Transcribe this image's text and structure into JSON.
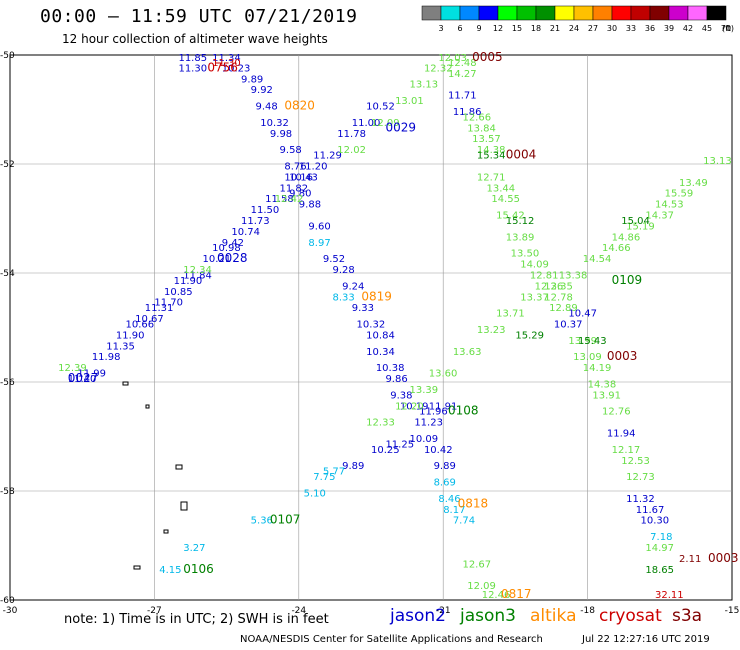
{
  "header": {
    "title": "00:00 – 11:59 UTC 07/21/2019",
    "subtitle": "12 hour collection of altimeter wave heights"
  },
  "colorbar": {
    "labels": [
      "3",
      "6",
      "9",
      "12",
      "15",
      "18",
      "21",
      "24",
      "27",
      "30",
      "33",
      "36",
      "39",
      "42",
      "45",
      "70",
      "(ft)"
    ],
    "colors": [
      "#7f7f7f",
      "#00e0e0",
      "#0088ff",
      "#0000ff",
      "#00ff00",
      "#00c000",
      "#009000",
      "#ffff00",
      "#ffc000",
      "#ff8000",
      "#ff0000",
      "#c00000",
      "#800000",
      "#cc00cc",
      "#ff66ff",
      "#000000"
    ]
  },
  "axes": {
    "x_ticks": [
      "-30",
      "-27",
      "-24",
      "-21",
      "-18",
      "-15"
    ],
    "y_ticks": [
      "-50",
      "-52",
      "-54",
      "-56",
      "-58",
      "-60"
    ],
    "lon_range": [
      -30,
      -15
    ],
    "lat_range": [
      -60,
      -50
    ]
  },
  "satellite_colors": {
    "jason2": "#0000cc",
    "jason3": "#008000",
    "altika": "#ff8c00",
    "cryosat": "#cc0000",
    "s3a": "#800000",
    "swh_blue": "#0000cc",
    "swh_cyan": "#00b8e8",
    "swh_lgreen": "#66dd44"
  },
  "tracks": [
    {
      "color": "#0000cc",
      "points": [
        {
          "lon": -28.8,
          "lat": -56.0,
          "v": "11.40"
        },
        {
          "lon": -28.6,
          "lat": -55.9,
          "v": "11.99"
        },
        {
          "lon": -28.3,
          "lat": -55.6,
          "v": "11.98"
        },
        {
          "lon": -28.0,
          "lat": -55.4,
          "v": "11.35"
        },
        {
          "lon": -27.8,
          "lat": -55.2,
          "v": "11.90"
        },
        {
          "lon": -27.6,
          "lat": -55.0,
          "v": "10.66"
        },
        {
          "lon": -27.4,
          "lat": -54.9,
          "v": "10.67"
        },
        {
          "lon": -27.2,
          "lat": -54.7,
          "v": "11.31"
        },
        {
          "lon": -27.0,
          "lat": -54.6,
          "v": "11.70"
        },
        {
          "lon": -26.8,
          "lat": -54.4,
          "v": "10.85"
        },
        {
          "lon": -26.6,
          "lat": -54.2,
          "v": "11.90"
        },
        {
          "lon": -26.4,
          "lat": -54.1,
          "v": "11.84"
        },
        {
          "lon": -26.0,
          "lat": -53.8,
          "v": "10.21"
        },
        {
          "lon": -25.8,
          "lat": -53.6,
          "v": "10.98"
        },
        {
          "lon": -25.6,
          "lat": -53.5,
          "v": "9.42"
        },
        {
          "lon": -25.4,
          "lat": -53.3,
          "v": "10.74"
        },
        {
          "lon": -25.2,
          "lat": -53.1,
          "v": "11.73"
        },
        {
          "lon": -25.0,
          "lat": -52.9,
          "v": "11.50"
        },
        {
          "lon": -24.7,
          "lat": -52.7,
          "v": "11.58"
        },
        {
          "lon": -24.4,
          "lat": -52.5,
          "v": "11.82"
        },
        {
          "lon": -24.2,
          "lat": -52.3,
          "v": "10.43"
        },
        {
          "lon": -24.0,
          "lat": -52.1,
          "v": "11.20"
        },
        {
          "lon": -23.7,
          "lat": -51.9,
          "v": "11.29"
        },
        {
          "lon": -23.2,
          "lat": -51.5,
          "v": "11.78"
        },
        {
          "lon": -22.9,
          "lat": -51.3,
          "v": "11.00"
        },
        {
          "lon": -22.6,
          "lat": -51.0,
          "v": "10.52"
        }
      ]
    },
    {
      "color": "#0000cc",
      "points": [
        {
          "lon": -25.8,
          "lat": -50.1,
          "v": "11.34"
        },
        {
          "lon": -25.6,
          "lat": -50.3,
          "v": "10.23"
        },
        {
          "lon": -25.2,
          "lat": -50.5,
          "v": "9.89"
        },
        {
          "lon": -25.0,
          "lat": -50.7,
          "v": "9.92"
        },
        {
          "lon": -24.9,
          "lat": -51.0,
          "v": "9.48"
        },
        {
          "lon": -24.8,
          "lat": -51.3,
          "v": "10.32"
        },
        {
          "lon": -24.6,
          "lat": -51.5,
          "v": "9.98"
        },
        {
          "lon": -24.4,
          "lat": -51.8,
          "v": "9.58"
        },
        {
          "lon": -24.3,
          "lat": -52.1,
          "v": "8.76"
        },
        {
          "lon": -24.3,
          "lat": -52.3,
          "v": "10.16"
        },
        {
          "lon": -24.2,
          "lat": -52.6,
          "v": "9.80"
        },
        {
          "lon": -24.0,
          "lat": -52.8,
          "v": "9.88"
        },
        {
          "lon": -23.8,
          "lat": -53.2,
          "v": "9.60"
        },
        {
          "lon": -23.5,
          "lat": -53.8,
          "v": "9.52"
        },
        {
          "lon": -23.3,
          "lat": -54.0,
          "v": "9.28"
        },
        {
          "lon": -23.1,
          "lat": -54.3,
          "v": "9.24"
        },
        {
          "lon": -22.9,
          "lat": -54.7,
          "v": "9.33"
        },
        {
          "lon": -22.8,
          "lat": -55.0,
          "v": "10.32"
        },
        {
          "lon": -22.6,
          "lat": -55.2,
          "v": "10.84"
        },
        {
          "lon": -22.6,
          "lat": -55.5,
          "v": "10.34"
        },
        {
          "lon": -22.4,
          "lat": -55.8,
          "v": "10.38"
        },
        {
          "lon": -22.2,
          "lat": -56.0,
          "v": "9.86"
        },
        {
          "lon": -22.1,
          "lat": -56.3,
          "v": "9.38"
        },
        {
          "lon": -21.9,
          "lat": -56.5,
          "v": "10.19"
        },
        {
          "lon": -21.6,
          "lat": -56.8,
          "v": "11.23"
        },
        {
          "lon": -21.7,
          "lat": -57.1,
          "v": "10.09"
        },
        {
          "lon": -21.4,
          "lat": -57.3,
          "v": "10.42"
        },
        {
          "lon": -21.2,
          "lat": -57.6,
          "v": "9.89"
        }
      ]
    },
    {
      "color": "#0000cc",
      "points": [
        {
          "lon": -22.5,
          "lat": -57.3,
          "v": "10.25"
        },
        {
          "lon": -22.2,
          "lat": -57.2,
          "v": "11.25"
        },
        {
          "lon": -21.5,
          "lat": -56.6,
          "v": "11.96"
        },
        {
          "lon": -21.3,
          "lat": -56.5,
          "v": "11.91"
        },
        {
          "lon": -20.9,
          "lat": -50.8,
          "v": "11.71"
        },
        {
          "lon": -20.8,
          "lat": -51.1,
          "v": "11.86"
        },
        {
          "lon": -18.7,
          "lat": -55.0,
          "v": "10.37"
        },
        {
          "lon": -18.4,
          "lat": -54.8,
          "v": "10.47"
        },
        {
          "lon": -17.6,
          "lat": -57.0,
          "v": "11.94"
        },
        {
          "lon": -17.2,
          "lat": -58.2,
          "v": "11.32"
        },
        {
          "lon": -17.0,
          "lat": -58.4,
          "v": "11.67"
        },
        {
          "lon": -16.9,
          "lat": -58.6,
          "v": "10.30"
        },
        {
          "lon": -23.1,
          "lat": -57.6,
          "v": "9.89"
        }
      ]
    },
    {
      "color": "#00b8e8",
      "points": [
        {
          "lon": -23.8,
          "lat": -53.5,
          "v": "8.97"
        },
        {
          "lon": -23.3,
          "lat": -54.5,
          "v": "8.33"
        },
        {
          "lon": -21.2,
          "lat": -57.9,
          "v": "8.69"
        },
        {
          "lon": -21.1,
          "lat": -58.2,
          "v": "8.46"
        },
        {
          "lon": -21.0,
          "lat": -58.4,
          "v": "8.17"
        },
        {
          "lon": -23.5,
          "lat": -57.7,
          "v": "5.77"
        },
        {
          "lon": -23.7,
          "lat": -57.8,
          "v": "7.75"
        },
        {
          "lon": -23.9,
          "lat": -58.1,
          "v": "5.10"
        },
        {
          "lon": -25.0,
          "lat": -58.6,
          "v": "5.36"
        },
        {
          "lon": -26.4,
          "lat": -59.1,
          "v": "3.27"
        },
        {
          "lon": -26.9,
          "lat": -59.5,
          "v": "4.15"
        },
        {
          "lon": -20.8,
          "lat": -58.6,
          "v": "7.74"
        },
        {
          "lon": -16.7,
          "lat": -58.9,
          "v": "7.18"
        }
      ]
    },
    {
      "color": "#66dd44",
      "points": [
        {
          "lon": -29.0,
          "lat": -55.8,
          "v": "12.39"
        },
        {
          "lon": -26.4,
          "lat": -54.0,
          "v": "12.34"
        },
        {
          "lon": -24.5,
          "lat": -52.7,
          "v": "12.42"
        },
        {
          "lon": -23.2,
          "lat": -51.8,
          "v": "12.02"
        },
        {
          "lon": -22.5,
          "lat": -51.3,
          "v": "12.09"
        },
        {
          "lon": -22.0,
          "lat": -50.9,
          "v": "13.01"
        },
        {
          "lon": -21.7,
          "lat": -50.6,
          "v": "13.13"
        },
        {
          "lon": -21.4,
          "lat": -50.3,
          "v": "12.32"
        },
        {
          "lon": -21.1,
          "lat": -50.0,
          "v": "12.03"
        },
        {
          "lon": -20.9,
          "lat": -50.2,
          "v": "12.48"
        },
        {
          "lon": -20.9,
          "lat": -50.4,
          "v": "14.27"
        },
        {
          "lon": -20.6,
          "lat": -51.2,
          "v": "12.66"
        },
        {
          "lon": -20.5,
          "lat": -51.4,
          "v": "13.84"
        },
        {
          "lon": -20.4,
          "lat": -51.6,
          "v": "13.57"
        },
        {
          "lon": -20.3,
          "lat": -51.8,
          "v": "14.38"
        },
        {
          "lon": -20.3,
          "lat": -52.3,
          "v": "12.71"
        },
        {
          "lon": -20.1,
          "lat": -52.5,
          "v": "13.44"
        },
        {
          "lon": -20.0,
          "lat": -52.7,
          "v": "14.55"
        },
        {
          "lon": -19.9,
          "lat": -53.0,
          "v": "15.42"
        },
        {
          "lon": -19.7,
          "lat": -53.4,
          "v": "13.89"
        },
        {
          "lon": -19.6,
          "lat": -53.7,
          "v": "13.50"
        },
        {
          "lon": -19.4,
          "lat": -53.9,
          "v": "14.09"
        },
        {
          "lon": -19.2,
          "lat": -54.1,
          "v": "12.81"
        },
        {
          "lon": -19.1,
          "lat": -54.3,
          "v": "12.26"
        },
        {
          "lon": -18.9,
          "lat": -54.5,
          "v": "12.78"
        },
        {
          "lon": -18.8,
          "lat": -54.7,
          "v": "12.89"
        },
        {
          "lon": -18.4,
          "lat": -55.3,
          "v": "13.99"
        },
        {
          "lon": -18.3,
          "lat": -55.6,
          "v": "13.09"
        },
        {
          "lon": -18.1,
          "lat": -55.8,
          "v": "14.19"
        },
        {
          "lon": -18.0,
          "lat": -56.1,
          "v": "14.38"
        },
        {
          "lon": -17.9,
          "lat": -56.3,
          "v": "13.91"
        },
        {
          "lon": -17.7,
          "lat": -56.6,
          "v": "12.76"
        },
        {
          "lon": -17.5,
          "lat": -57.3,
          "v": "12.17"
        },
        {
          "lon": -17.3,
          "lat": -57.5,
          "v": "12.53"
        },
        {
          "lon": -17.2,
          "lat": -57.8,
          "v": "12.73"
        },
        {
          "lon": -16.8,
          "lat": -59.1,
          "v": "14.97"
        },
        {
          "lon": -20.6,
          "lat": -59.4,
          "v": "12.67"
        },
        {
          "lon": -20.5,
          "lat": -59.8,
          "v": "12.09"
        },
        {
          "lon": -20.2,
          "lat": -60.3,
          "v": "12.46"
        }
      ]
    },
    {
      "color": "#66dd44",
      "points": [
        {
          "lon": -22.0,
          "lat": -56.5,
          "v": "12.20"
        },
        {
          "lon": -21.7,
          "lat": -56.2,
          "v": "13.39"
        },
        {
          "lon": -21.3,
          "lat": -55.9,
          "v": "13.60"
        },
        {
          "lon": -20.8,
          "lat": -55.5,
          "v": "13.63"
        },
        {
          "lon": -20.3,
          "lat": -55.1,
          "v": "13.23"
        },
        {
          "lon": -19.9,
          "lat": -54.8,
          "v": "13.71"
        },
        {
          "lon": -19.4,
          "lat": -54.5,
          "v": "13.37"
        },
        {
          "lon": -18.9,
          "lat": -54.3,
          "v": "13.35"
        },
        {
          "lon": -18.6,
          "lat": -54.1,
          "v": "13.38"
        },
        {
          "lon": -18.1,
          "lat": -53.8,
          "v": "14.54"
        },
        {
          "lon": -17.7,
          "lat": -53.6,
          "v": "14.66"
        },
        {
          "lon": -17.5,
          "lat": -53.4,
          "v": "14.86"
        },
        {
          "lon": -17.2,
          "lat": -53.2,
          "v": "15.19"
        },
        {
          "lon": -16.8,
          "lat": -53.0,
          "v": "14.37"
        },
        {
          "lon": -16.6,
          "lat": -52.8,
          "v": "14.53"
        },
        {
          "lon": -16.4,
          "lat": -52.6,
          "v": "15.59"
        },
        {
          "lon": -16.1,
          "lat": -52.4,
          "v": "13.49"
        },
        {
          "lon": -15.6,
          "lat": -52.0,
          "v": "13.13"
        },
        {
          "lon": -22.6,
          "lat": -56.8,
          "v": "12.33"
        }
      ]
    },
    {
      "color": "#008000",
      "points": [
        {
          "lon": -20.3,
          "lat": -51.9,
          "v": "15.34"
        },
        {
          "lon": -19.7,
          "lat": -53.1,
          "v": "15.12"
        },
        {
          "lon": -19.5,
          "lat": -55.2,
          "v": "15.29"
        },
        {
          "lon": -18.2,
          "lat": -55.3,
          "v": "15.43"
        },
        {
          "lon": -17.3,
          "lat": -53.1,
          "v": "15.04"
        },
        {
          "lon": -16.8,
          "lat": -59.5,
          "v": "18.65"
        }
      ]
    },
    {
      "color": "#800000",
      "points": [
        {
          "lon": -16.1,
          "lat": -59.3,
          "v": "2.11"
        }
      ]
    },
    {
      "color": "#cc0000",
      "points": [
        {
          "lon": -25.8,
          "lat": -50.2,
          "v": "11.30"
        },
        {
          "lon": -16.6,
          "lat": -60.0,
          "v": "32.11"
        }
      ]
    },
    {
      "color": "#0000cc",
      "points": [
        {
          "lon": -26.5,
          "lat": -50.1,
          "v": "11.85"
        },
        {
          "lon": -26.5,
          "lat": -50.3,
          "v": "11.30"
        }
      ]
    }
  ],
  "pass_labels": [
    {
      "id": "0756",
      "lon": -25.9,
      "lat": -50.3,
      "color": "#cc0000"
    },
    {
      "id": "0820",
      "lon": -24.3,
      "lat": -51.0,
      "color": "#ff8c00"
    },
    {
      "id": "0029",
      "lon": -22.2,
      "lat": -51.4,
      "color": "#0000cc"
    },
    {
      "id": "0005",
      "lon": -20.4,
      "lat": -50.0,
      "color": "#800000"
    },
    {
      "id": "0004",
      "lon": -19.7,
      "lat": -51.9,
      "color": "#800000"
    },
    {
      "id": "0028",
      "lon": -25.7,
      "lat": -53.8,
      "color": "#0000cc"
    },
    {
      "id": "0027",
      "lon": -28.8,
      "lat": -56.0,
      "color": "#0000cc"
    },
    {
      "id": "0819",
      "lon": -22.7,
      "lat": -54.5,
      "color": "#ff8c00"
    },
    {
      "id": "0109",
      "lon": -17.5,
      "lat": -54.2,
      "color": "#008000"
    },
    {
      "id": "0003",
      "lon": -17.6,
      "lat": -55.6,
      "color": "#800000"
    },
    {
      "id": "0108",
      "lon": -20.9,
      "lat": -56.6,
      "color": "#008000"
    },
    {
      "id": "0818",
      "lon": -20.7,
      "lat": -58.3,
      "color": "#ff8c00"
    },
    {
      "id": "0107",
      "lon": -24.6,
      "lat": -58.6,
      "color": "#008000"
    },
    {
      "id": "0106",
      "lon": -26.4,
      "lat": -59.5,
      "color": "#008000"
    },
    {
      "id": "0817",
      "lon": -19.8,
      "lat": -60.3,
      "color": "#ff8c00"
    },
    {
      "id": "0003",
      "lon": -15.1,
      "lat": -59.3,
      "color": "#800000"
    }
  ],
  "footer": {
    "note": "note: 1) Time is in UTC; 2) SWH is in feet",
    "legend": [
      {
        "name": "jason2",
        "color": "#0000cc"
      },
      {
        "name": "jason3",
        "color": "#008000"
      },
      {
        "name": "altika",
        "color": "#ff8c00"
      },
      {
        "name": "cryosat",
        "color": "#cc0000"
      },
      {
        "name": "s3a",
        "color": "#800000"
      }
    ],
    "credit": "NOAA/NESDIS Center for Satellite Applications and Research",
    "timestamp": "Jul 22 12:27:16 UTC 2019"
  }
}
